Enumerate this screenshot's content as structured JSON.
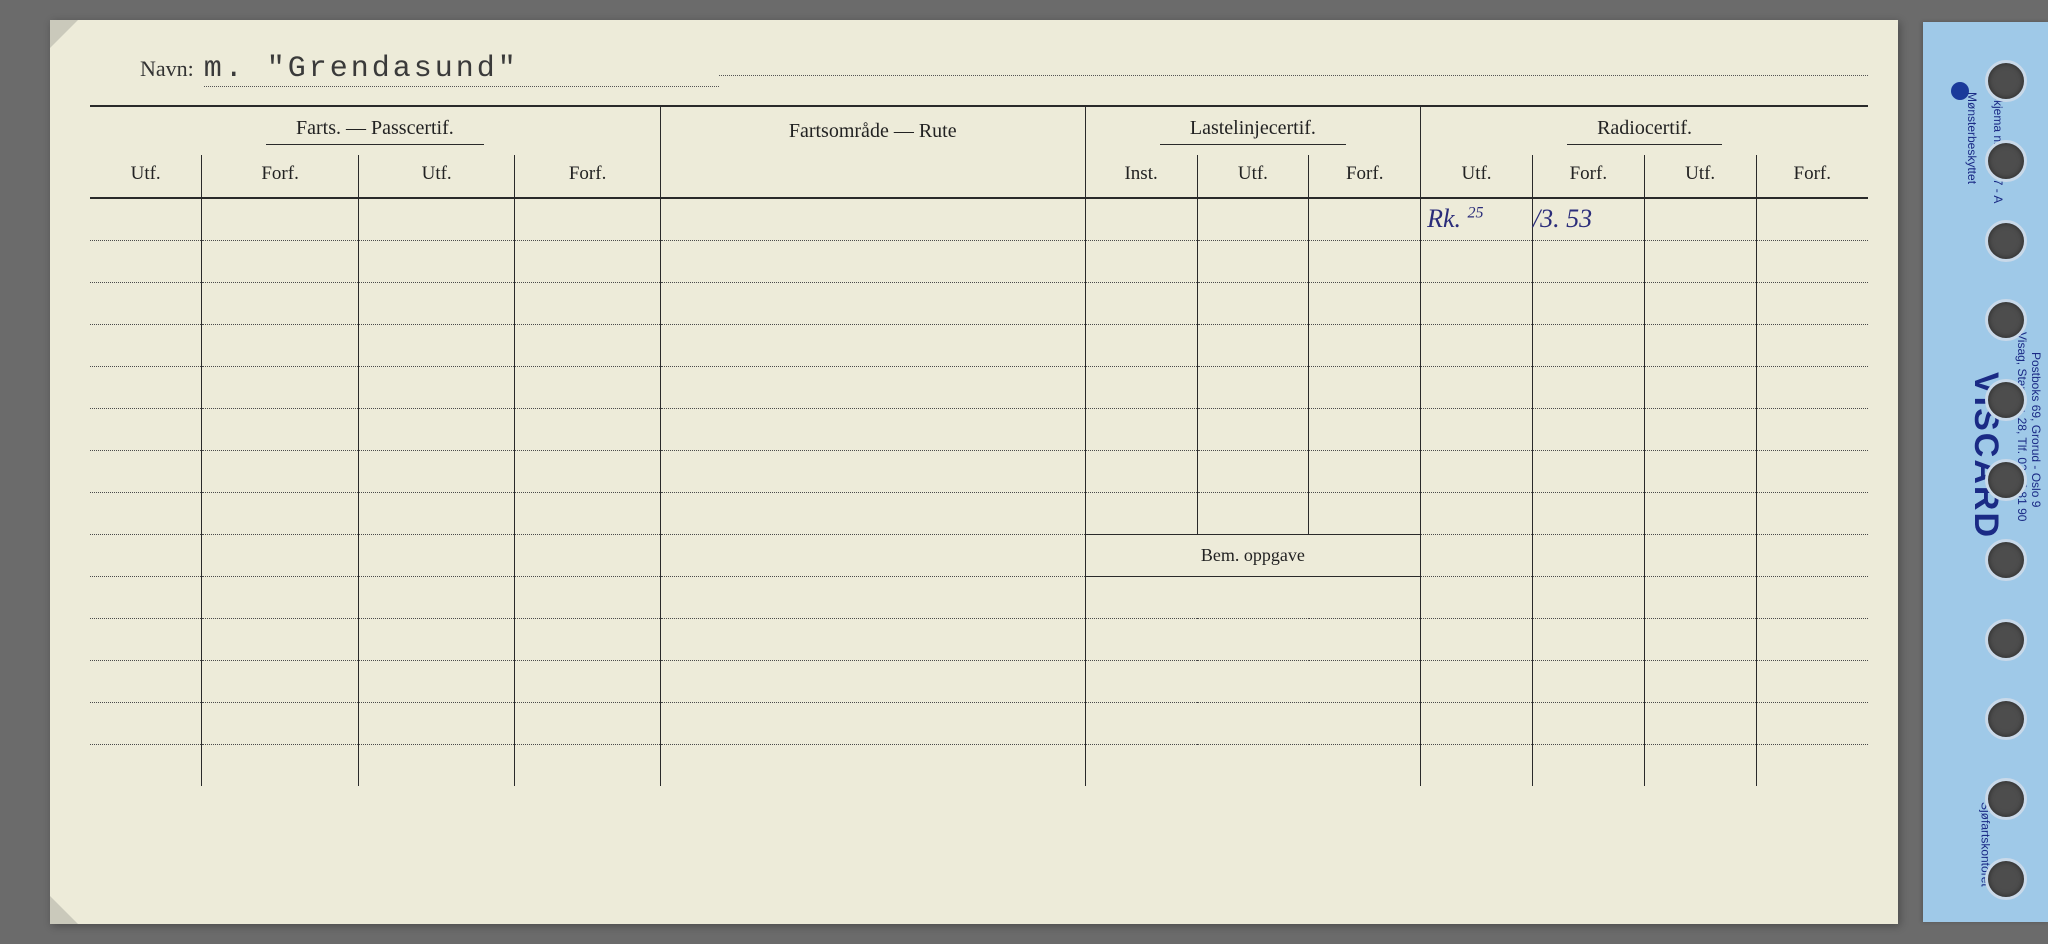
{
  "card": {
    "name_label": "Navn:",
    "name_value": "m. \"Grendasund\"",
    "sections": {
      "farts_pass": "Farts. — Passcertif.",
      "fartsomrade": "Fartsområde — Rute",
      "lastelinje": "Lastelinjecertif.",
      "radio": "Radiocertif."
    },
    "subheaders": {
      "utf": "Utf.",
      "forf": "Forf.",
      "inst": "Inst."
    },
    "bem_label": "Bem. oppgave",
    "entry": {
      "radio_utf": "Rk.",
      "radio_utf_sup": "25",
      "radio_forf": "/3. 53"
    },
    "row_count_upper": 8,
    "row_count_lower": 5
  },
  "divider": {
    "skjema": "Skjema nr. 53007 - A",
    "monster": "Mønsterbeskyttet",
    "brand": "VISCARD",
    "address_line1": "Visag, Stansev. 28, Tlf. 02-25 81 90",
    "address_line2": "Postboks 69, Grorud - Oslo 9",
    "footer": "Sjøfartskontoret"
  },
  "colors": {
    "paper": "#edebd9",
    "ink": "#2a2a2a",
    "handwriting": "#2a2c7a",
    "tab": "#9fc9e8",
    "tab_text": "#1a2a85",
    "background": "#6b6b6b"
  }
}
